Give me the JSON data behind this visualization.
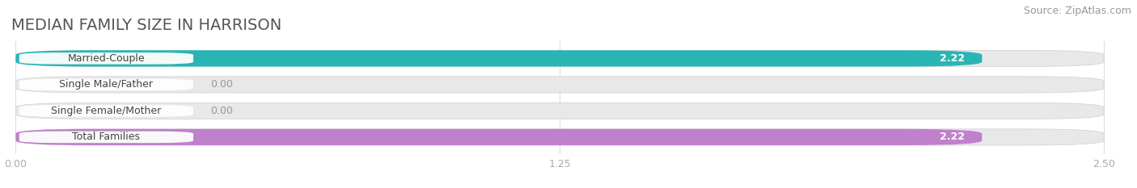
{
  "title": "MEDIAN FAMILY SIZE IN HARRISON",
  "source": "Source: ZipAtlas.com",
  "categories": [
    "Married-Couple",
    "Single Male/Father",
    "Single Female/Mother",
    "Total Families"
  ],
  "values": [
    2.22,
    0.0,
    0.0,
    2.22
  ],
  "bar_colors": [
    "#2ab5b5",
    "#aabce8",
    "#f5a8ba",
    "#c080cc"
  ],
  "background_color": "#ffffff",
  "bar_bg_color": "#e8e8e8",
  "bar_bg_edge_color": "#d0d0d0",
  "xlim_min": 0,
  "xlim_max": 2.5,
  "xticks": [
    0.0,
    1.25,
    2.5
  ],
  "xtick_labels": [
    "0.00",
    "1.25",
    "2.50"
  ],
  "label_bg_color": "#ffffff",
  "title_fontsize": 14,
  "source_fontsize": 9,
  "bar_height": 0.62,
  "bar_value_fontsize": 9,
  "label_fontsize": 9,
  "value_label_color_inside": "#ffffff",
  "value_label_color_outside": "#999999",
  "title_color": "#555555",
  "source_color": "#999999",
  "tick_color": "#aaaaaa",
  "grid_color": "#dddddd"
}
